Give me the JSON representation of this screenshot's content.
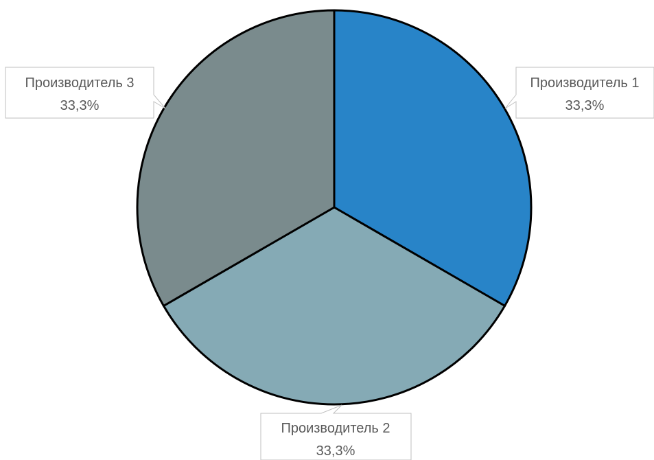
{
  "chart_data": {
    "type": "pie",
    "title": "",
    "categories": [
      "Производитель 1",
      "Производитель 2",
      "Производитель 3"
    ],
    "values": [
      33.3,
      33.3,
      33.3
    ],
    "labels": [
      "33,3%",
      "33,3%",
      "33,3%"
    ],
    "colors": [
      "#2884C8",
      "#85AAB5",
      "#7A8B8D"
    ],
    "start_angle": "12 o'clock",
    "direction": "clockwise",
    "data_label_style": "callout",
    "legend": "none"
  }
}
